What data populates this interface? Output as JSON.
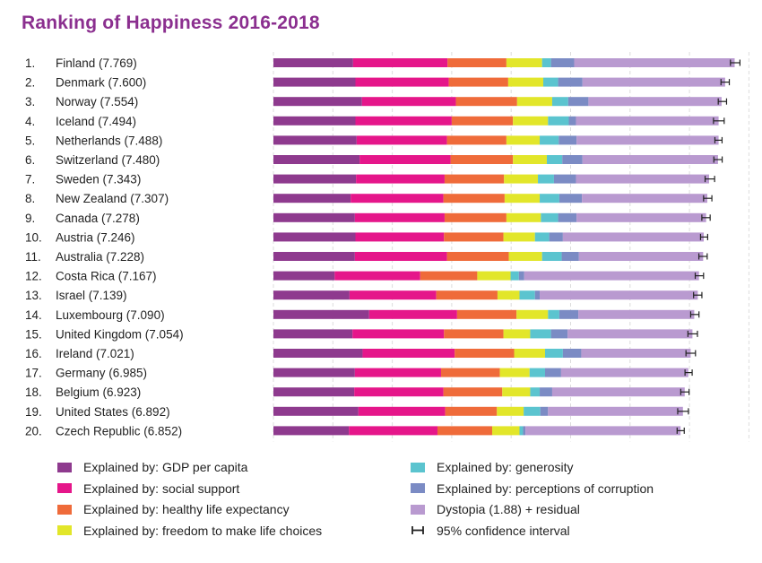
{
  "chart_data": {
    "type": "bar",
    "orientation": "horizontal",
    "stacked": true,
    "title": "Ranking of Happiness 2016-2018",
    "xlim": [
      0,
      8
    ],
    "grid": true,
    "legend_position": "bottom",
    "categories": [
      "1. Finland (7.769)",
      "2. Denmark (7.600)",
      "3. Norway (7.554)",
      "4. Iceland (7.494)",
      "5. Netherlands (7.488)",
      "6. Switzerland (7.480)",
      "7. Sweden (7.343)",
      "8. New Zealand (7.307)",
      "9. Canada (7.278)",
      "10. Austria (7.246)",
      "11. Australia (7.228)",
      "12. Costa Rica (7.167)",
      "13. Israel (7.139)",
      "14. Luxembourg (7.090)",
      "15. United Kingdom (7.054)",
      "16. Ireland (7.021)",
      "17. Germany (6.985)",
      "18. Belgium (6.923)",
      "19. United States (6.892)",
      "20. Czech Republic (6.852)"
    ],
    "ranks": [
      "1.",
      "2.",
      "3.",
      "4.",
      "5.",
      "6.",
      "7.",
      "8.",
      "9.",
      "10.",
      "11.",
      "12.",
      "13.",
      "14.",
      "15.",
      "16.",
      "17.",
      "18.",
      "19.",
      "20."
    ],
    "country_labels": [
      "Finland (7.769)",
      "Denmark (7.600)",
      "Norway (7.554)",
      "Iceland (7.494)",
      "Netherlands (7.488)",
      "Switzerland (7.480)",
      "Sweden (7.343)",
      "New Zealand (7.307)",
      "Canada (7.278)",
      "Austria (7.246)",
      "Australia (7.228)",
      "Costa Rica (7.167)",
      "Israel (7.139)",
      "Luxembourg (7.090)",
      "United Kingdom (7.054)",
      "Ireland (7.021)",
      "Germany (6.985)",
      "Belgium (6.923)",
      "United States (6.892)",
      "Czech Republic (6.852)"
    ],
    "totals": [
      7.769,
      7.6,
      7.554,
      7.494,
      7.488,
      7.48,
      7.343,
      7.307,
      7.278,
      7.246,
      7.228,
      7.167,
      7.139,
      7.09,
      7.054,
      7.021,
      6.985,
      6.923,
      6.892,
      6.852
    ],
    "ci_halfwidth": [
      0.08,
      0.07,
      0.07,
      0.09,
      0.06,
      0.07,
      0.08,
      0.07,
      0.07,
      0.06,
      0.07,
      0.07,
      0.07,
      0.07,
      0.08,
      0.08,
      0.06,
      0.07,
      0.09,
      0.06
    ],
    "series": [
      {
        "name": "Explained by: GDP per capita",
        "color": "#8e3a8e",
        "values": [
          1.34,
          1.38,
          1.49,
          1.38,
          1.4,
          1.45,
          1.39,
          1.3,
          1.37,
          1.38,
          1.37,
          1.03,
          1.28,
          1.61,
          1.33,
          1.5,
          1.37,
          1.36,
          1.43,
          1.27
        ]
      },
      {
        "name": "Explained by: social support",
        "color": "#e5168a",
        "values": [
          1.59,
          1.57,
          1.58,
          1.62,
          1.52,
          1.53,
          1.49,
          1.56,
          1.51,
          1.49,
          1.55,
          1.44,
          1.46,
          1.48,
          1.54,
          1.55,
          1.45,
          1.5,
          1.46,
          1.49
        ]
      },
      {
        "name": "Explained by: healthy life expectancy",
        "color": "#ef6b3a",
        "values": [
          0.99,
          1.0,
          1.03,
          1.03,
          1.0,
          1.05,
          1.0,
          1.03,
          1.04,
          1.0,
          1.04,
          0.96,
          1.03,
          1.0,
          1.0,
          1.0,
          0.99,
          0.99,
          0.87,
          0.92
        ]
      },
      {
        "name": "Explained by: freedom to make life choices",
        "color": "#e2e62a",
        "values": [
          0.6,
          0.59,
          0.59,
          0.59,
          0.56,
          0.57,
          0.57,
          0.59,
          0.58,
          0.53,
          0.56,
          0.56,
          0.37,
          0.53,
          0.45,
          0.52,
          0.5,
          0.47,
          0.45,
          0.46
        ]
      },
      {
        "name": "Explained by: generosity",
        "color": "#5bc4cf",
        "values": [
          0.15,
          0.25,
          0.27,
          0.35,
          0.32,
          0.26,
          0.27,
          0.33,
          0.29,
          0.24,
          0.33,
          0.14,
          0.26,
          0.19,
          0.35,
          0.3,
          0.26,
          0.16,
          0.28,
          0.06
        ]
      },
      {
        "name": "Explained by: perceptions of corruption",
        "color": "#7b8bc4",
        "values": [
          0.39,
          0.41,
          0.34,
          0.12,
          0.3,
          0.34,
          0.37,
          0.38,
          0.31,
          0.23,
          0.29,
          0.09,
          0.08,
          0.32,
          0.28,
          0.31,
          0.27,
          0.21,
          0.13,
          0.04
        ]
      },
      {
        "name": "Dystopia (1.88) + residual",
        "color": "#b99ad0",
        "values": [
          2.7,
          2.4,
          2.24,
          2.4,
          2.39,
          2.28,
          2.24,
          2.11,
          2.18,
          2.37,
          2.09,
          2.94,
          2.66,
          1.95,
          2.1,
          1.84,
          2.14,
          2.23,
          2.27,
          2.61
        ]
      }
    ],
    "legend": [
      {
        "label": "Explained by: GDP per capita",
        "color": "#8e3a8e",
        "kind": "swatch"
      },
      {
        "label": "Explained by: social support",
        "color": "#e5168a",
        "kind": "swatch"
      },
      {
        "label": "Explained by: healthy life expectancy",
        "color": "#ef6b3a",
        "kind": "swatch"
      },
      {
        "label": "Explained by: freedom to make life choices",
        "color": "#e2e62a",
        "kind": "swatch"
      },
      {
        "label": "Explained by: generosity",
        "color": "#5bc4cf",
        "kind": "swatch"
      },
      {
        "label": "Explained by: perceptions of corruption",
        "color": "#7b8bc4",
        "kind": "swatch"
      },
      {
        "label": "Dystopia (1.88) + residual",
        "color": "#b99ad0",
        "kind": "swatch"
      },
      {
        "label": "95% confidence interval",
        "color": "#222222",
        "kind": "ci"
      }
    ]
  }
}
